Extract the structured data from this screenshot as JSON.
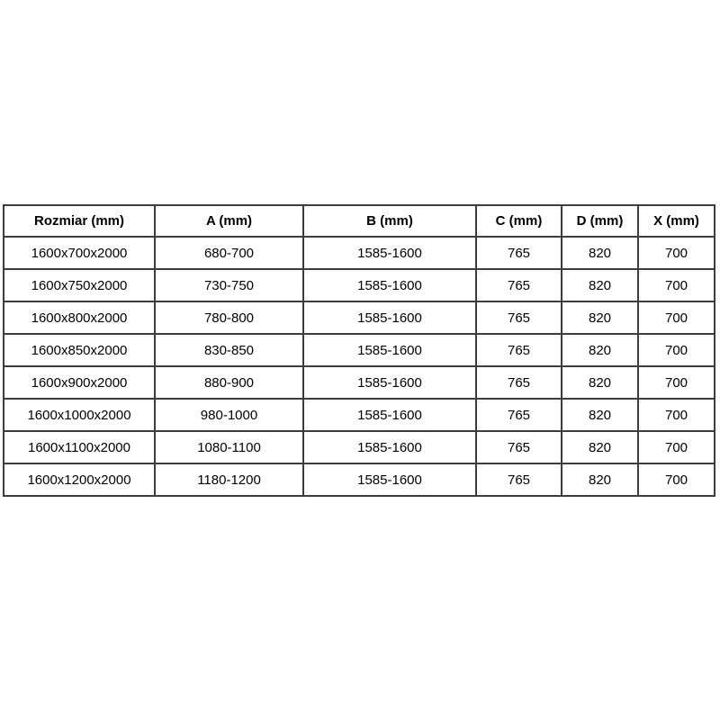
{
  "chart_data": {
    "type": "table",
    "columns": [
      "Rozmiar (mm)",
      "A (mm)",
      "B (mm)",
      "C (mm)",
      "D (mm)",
      "X (mm)"
    ],
    "rows": [
      [
        "1600x700x2000",
        "680-700",
        "1585-1600",
        "765",
        "820",
        "700"
      ],
      [
        "1600x750x2000",
        "730-750",
        "1585-1600",
        "765",
        "820",
        "700"
      ],
      [
        "1600x800x2000",
        "780-800",
        "1585-1600",
        "765",
        "820",
        "700"
      ],
      [
        "1600x850x2000",
        "830-850",
        "1585-1600",
        "765",
        "820",
        "700"
      ],
      [
        "1600x900x2000",
        "880-900",
        "1585-1600",
        "765",
        "820",
        "700"
      ],
      [
        "1600x1000x2000",
        "980-1000",
        "1585-1600",
        "765",
        "820",
        "700"
      ],
      [
        "1600x1100x2000",
        "1080-1100",
        "1585-1600",
        "765",
        "820",
        "700"
      ],
      [
        "1600x1200x2000",
        "1180-1200",
        "1585-1600",
        "765",
        "820",
        "700"
      ]
    ],
    "layout": {
      "grid": true,
      "header_bold": true
    }
  },
  "style": {
    "border_color": "#3d3d3d",
    "text_color": "#000000",
    "background": "#ffffff"
  }
}
